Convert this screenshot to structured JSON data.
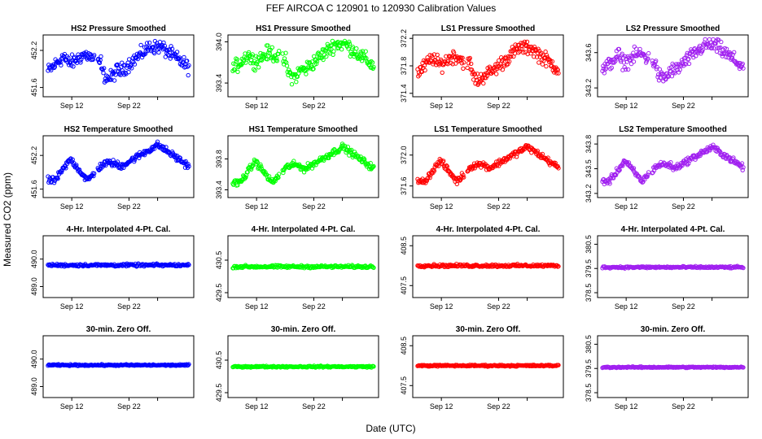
{
  "figure": {
    "title": "FEF   AIRCOA C   120901 to 120930   Calibration Values",
    "xlabel": "Date (UTC)",
    "ylabel": "Measured CO2 (ppm)"
  },
  "colors": {
    "HS2": "#0000ff",
    "HS1": "#00ff00",
    "LS1": "#ff0000",
    "LS2": "#a020f0"
  },
  "chart_data": [
    {
      "type": "scatter",
      "title": "HS2 Pressure Smoothed",
      "series": "HS2",
      "x_ticks": [
        "Sep 12",
        "Sep 22"
      ],
      "y_ticks": [
        "451.6",
        "452.2"
      ],
      "ylim": [
        451.45,
        452.45
      ],
      "shape": "pressure",
      "y_range": [
        451.6,
        452.35
      ]
    },
    {
      "type": "scatter",
      "title": "HS1 Pressure Smoothed",
      "series": "HS1",
      "x_ticks": [
        "Sep 12",
        "Sep 22"
      ],
      "y_ticks": [
        "393.4",
        "394.0"
      ],
      "ylim": [
        393.2,
        394.1
      ],
      "shape": "pressure",
      "y_range": [
        393.35,
        394.05
      ]
    },
    {
      "type": "scatter",
      "title": "LS1 Pressure Smoothed",
      "series": "LS1",
      "x_ticks": [
        "Sep 12",
        "Sep 22"
      ],
      "y_ticks": [
        "371.4",
        "371.8",
        "372.2"
      ],
      "ylim": [
        371.35,
        372.25
      ],
      "shape": "pressure",
      "y_range": [
        371.45,
        372.15
      ]
    },
    {
      "type": "scatter",
      "title": "LS2 Pressure Smoothed",
      "series": "LS2",
      "x_ticks": [
        "Sep 12",
        "Sep 22"
      ],
      "y_ticks": [
        "343.2",
        "343.6"
      ],
      "ylim": [
        343.1,
        343.8
      ],
      "shape": "pressure",
      "y_range": [
        343.2,
        343.75
      ]
    },
    {
      "type": "scatter",
      "title": "HS2 Temperature Smoothed",
      "series": "HS2",
      "x_ticks": [
        "Sep 12",
        "Sep 22"
      ],
      "y_ticks": [
        "451.6",
        "452.2"
      ],
      "ylim": [
        451.45,
        452.55
      ],
      "shape": "temp",
      "y_range": [
        451.6,
        452.45
      ]
    },
    {
      "type": "scatter",
      "title": "HS1 Temperature Smoothed",
      "series": "HS1",
      "x_ticks": [
        "Sep 12",
        "Sep 22"
      ],
      "y_ticks": [
        "393.4",
        "393.8"
      ],
      "ylim": [
        393.3,
        394.1
      ],
      "shape": "temp",
      "y_range": [
        393.38,
        394.0
      ]
    },
    {
      "type": "scatter",
      "title": "LS1 Temperature Smoothed",
      "series": "LS1",
      "x_ticks": [
        "Sep 12",
        "Sep 22"
      ],
      "y_ticks": [
        "371.6",
        "372.0"
      ],
      "ylim": [
        371.45,
        372.25
      ],
      "shape": "temp",
      "y_range": [
        371.55,
        372.15
      ]
    },
    {
      "type": "scatter",
      "title": "LS2 Temperature Smoothed",
      "series": "LS2",
      "x_ticks": [
        "Sep 12",
        "Sep 22"
      ],
      "y_ticks": [
        "343.2",
        "343.5",
        "343.8"
      ],
      "ylim": [
        343.15,
        343.9
      ],
      "shape": "temp",
      "y_range": [
        343.25,
        343.8
      ]
    },
    {
      "type": "scatter",
      "title": "4-Hr. Interpolated 4-Pt. Cal.",
      "series": "HS2",
      "x_ticks": [
        "Sep 12",
        "Sep 22"
      ],
      "y_ticks": [
        "489.0",
        "490.0"
      ],
      "ylim": [
        488.6,
        490.85
      ],
      "shape": "flat",
      "y_level": 489.78,
      "noise": 0.07
    },
    {
      "type": "scatter",
      "title": "4-Hr. Interpolated 4-Pt. Cal.",
      "series": "HS1",
      "x_ticks": [
        "Sep 12",
        "Sep 22"
      ],
      "y_ticks": [
        "429.5",
        "430.5"
      ],
      "ylim": [
        429.35,
        431.25
      ],
      "shape": "flat",
      "y_level": 430.3,
      "noise": 0.06
    },
    {
      "type": "scatter",
      "title": "4-Hr. Interpolated 4-Pt. Cal.",
      "series": "LS1",
      "x_ticks": [
        "Sep 12",
        "Sep 22"
      ],
      "y_ticks": [
        "407.5",
        "408.5"
      ],
      "ylim": [
        407.2,
        408.75
      ],
      "shape": "flat",
      "y_level": 408.0,
      "noise": 0.05
    },
    {
      "type": "scatter",
      "title": "4-Hr. Interpolated 4-Pt. Cal.",
      "series": "LS2",
      "x_ticks": [
        "Sep 12",
        "Sep 22"
      ],
      "y_ticks": [
        "378.5",
        "379.5",
        "380.5"
      ],
      "ylim": [
        378.3,
        380.85
      ],
      "shape": "flat",
      "y_level": 379.55,
      "noise": 0.06
    },
    {
      "type": "scatter",
      "title": "30-min. Zero Off.",
      "series": "HS2",
      "x_ticks": [
        "Sep 12",
        "Sep 22"
      ],
      "y_ticks": [
        "489.0",
        "490.0"
      ],
      "ylim": [
        488.6,
        490.85
      ],
      "shape": "flat",
      "y_level": 489.78,
      "noise": 0.04
    },
    {
      "type": "scatter",
      "title": "30-min. Zero Off.",
      "series": "HS1",
      "x_ticks": [
        "Sep 12",
        "Sep 22"
      ],
      "y_ticks": [
        "429.5",
        "430.5"
      ],
      "ylim": [
        429.35,
        431.25
      ],
      "shape": "flat",
      "y_level": 430.3,
      "noise": 0.035
    },
    {
      "type": "scatter",
      "title": "30-min. Zero Off.",
      "series": "LS1",
      "x_ticks": [
        "Sep 12",
        "Sep 22"
      ],
      "y_ticks": [
        "407.5",
        "408.5"
      ],
      "ylim": [
        407.2,
        408.75
      ],
      "shape": "flat",
      "y_level": 408.0,
      "noise": 0.03
    },
    {
      "type": "scatter",
      "title": "30-min. Zero Off.",
      "series": "LS2",
      "x_ticks": [
        "Sep 12",
        "Sep 22"
      ],
      "y_ticks": [
        "378.5",
        "379.5",
        "380.5"
      ],
      "ylim": [
        378.3,
        380.85
      ],
      "shape": "flat",
      "y_level": 379.55,
      "noise": 0.04
    }
  ]
}
